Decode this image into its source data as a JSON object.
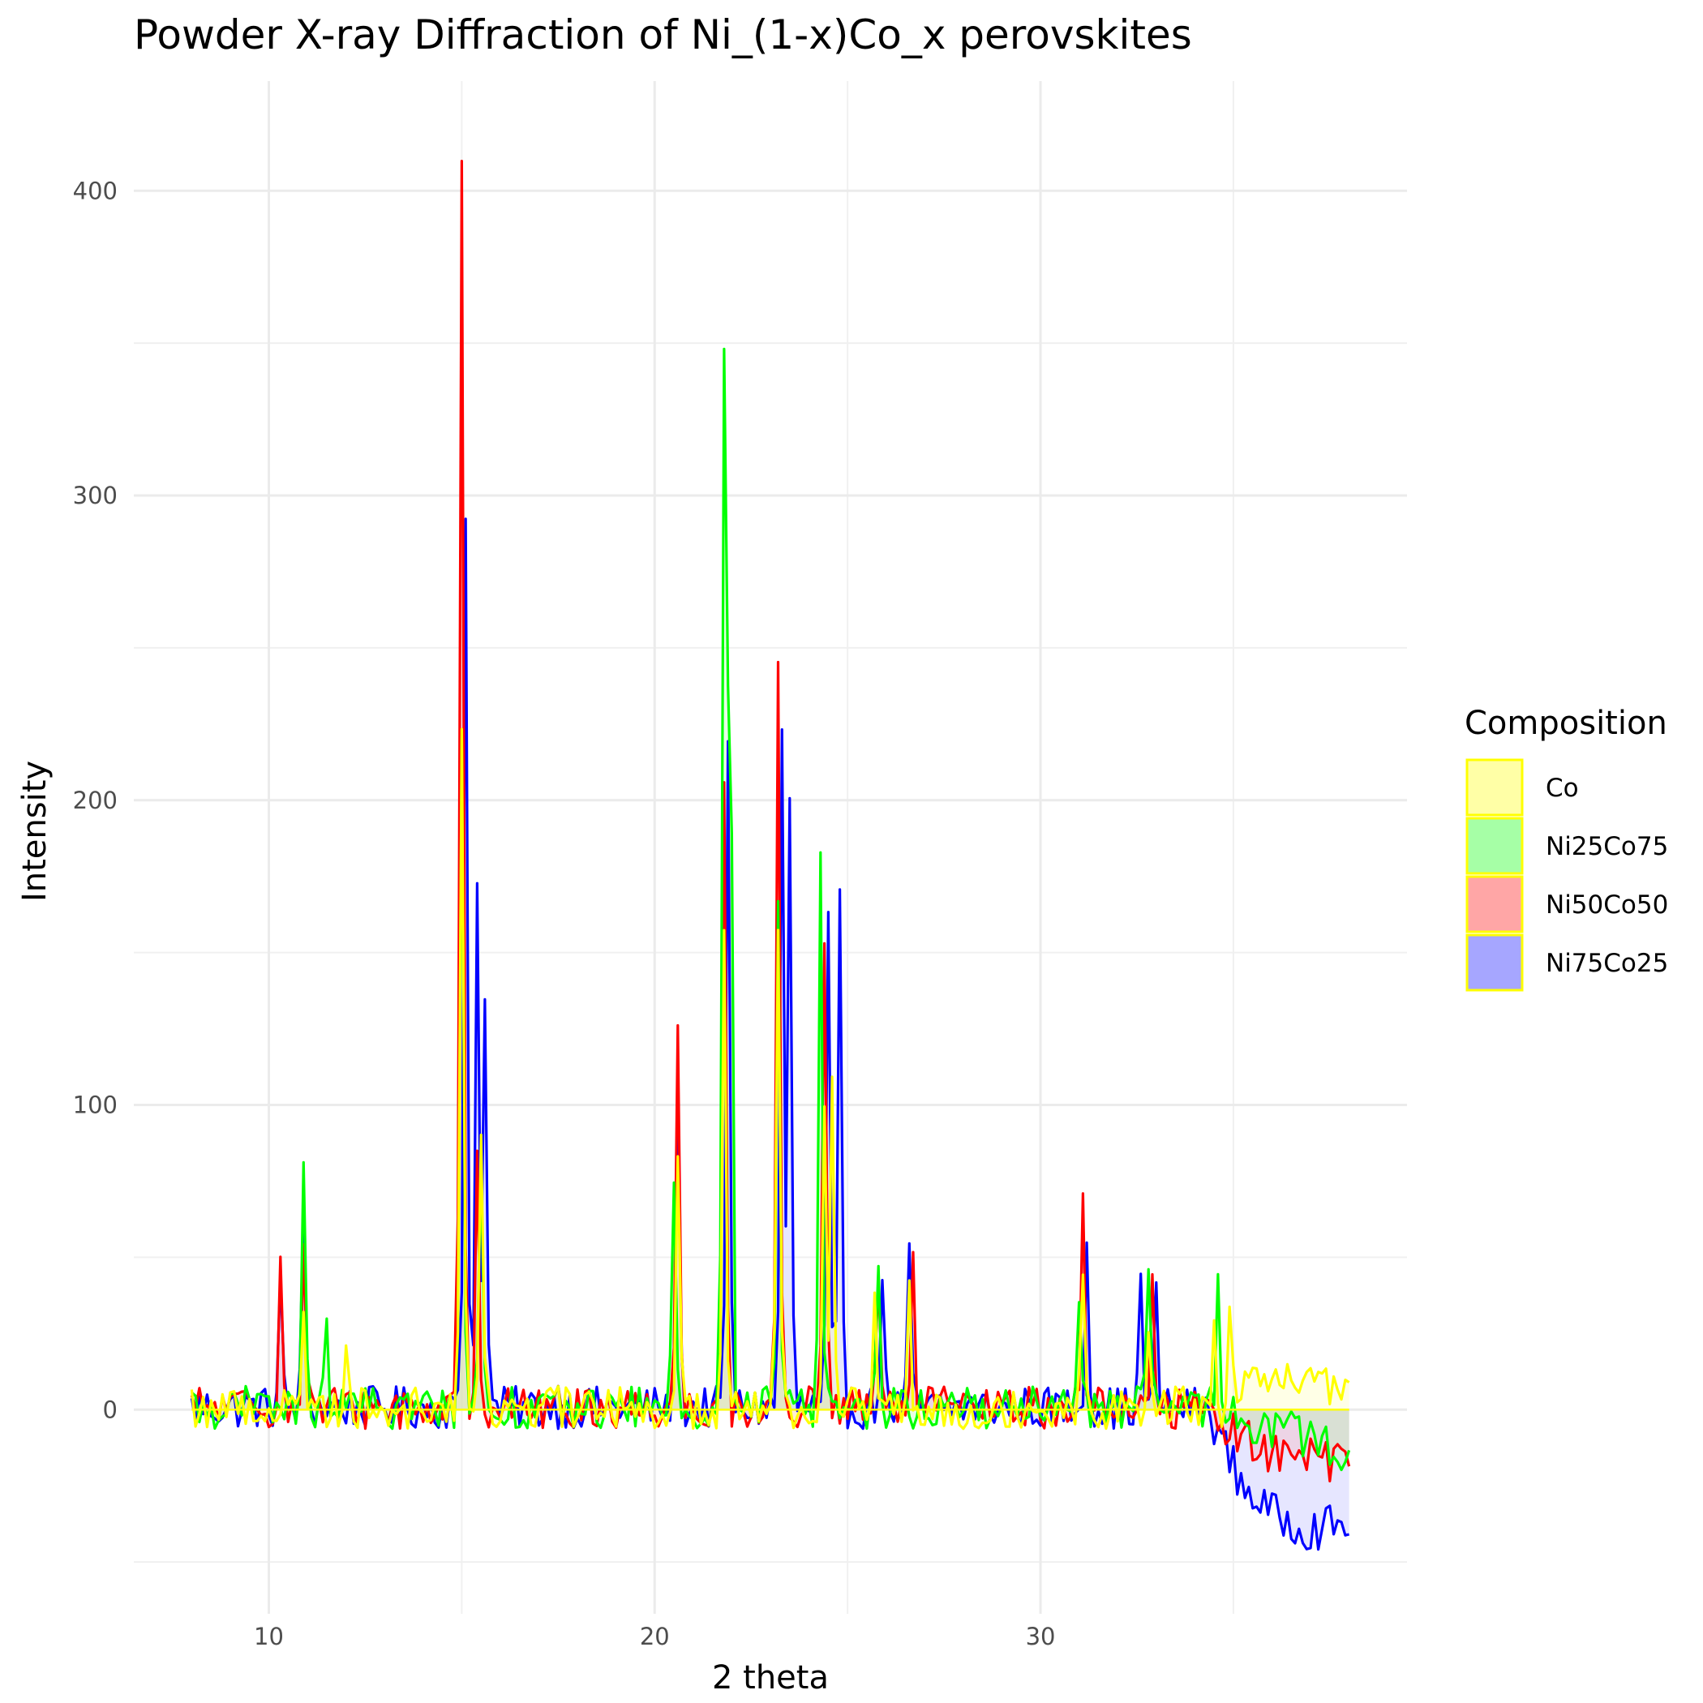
{
  "chart_data": {
    "type": "area",
    "title": "Powder X-ray Diffraction of Ni_(1-x)Co_x perovskites",
    "xlabel": "2 theta",
    "ylabel": "Intensity",
    "xlim": [
      6.5,
      39.5
    ],
    "ylim": [
      -67,
      436
    ],
    "x_ticks": [
      10,
      20,
      30
    ],
    "y_ticks": [
      0,
      100,
      200,
      300,
      400
    ],
    "grid": true,
    "legend_title": "Composition",
    "legend_position": "right",
    "step": 0.1,
    "x_start": 8.0,
    "x_end": 38.0,
    "series": [
      {
        "name": "Ni75Co25",
        "color": "#0000ff",
        "fill": "#a6a6ff",
        "peaks": [
          [
            10.3,
            40
          ],
          [
            10.9,
            60
          ],
          [
            15.1,
            292
          ],
          [
            15.4,
            170
          ],
          [
            15.6,
            140
          ],
          [
            20.6,
            95
          ],
          [
            21.9,
            222
          ],
          [
            23.3,
            224
          ],
          [
            23.5,
            198
          ],
          [
            24.5,
            158
          ],
          [
            24.8,
            163
          ],
          [
            25.9,
            48
          ],
          [
            26.6,
            48
          ],
          [
            31.2,
            55
          ],
          [
            32.6,
            42
          ],
          [
            33.0,
            35
          ]
        ],
        "tail": [
          [
            34.5,
            -5
          ],
          [
            35.2,
            -25
          ],
          [
            36.0,
            -35
          ],
          [
            37.0,
            -40
          ],
          [
            38.0,
            -38
          ]
        ]
      },
      {
        "name": "Ni50Co50",
        "color": "#ff0000",
        "fill": "#ffa6a6",
        "peaks": [
          [
            10.3,
            48
          ],
          [
            10.9,
            55
          ],
          [
            15.0,
            410
          ],
          [
            15.4,
            88
          ],
          [
            20.6,
            127
          ],
          [
            21.8,
            203
          ],
          [
            23.2,
            241
          ],
          [
            24.4,
            153
          ],
          [
            25.8,
            43
          ],
          [
            26.7,
            45
          ],
          [
            31.1,
            65
          ],
          [
            32.9,
            46
          ]
        ],
        "tail": [
          [
            34.5,
            -2
          ],
          [
            35.2,
            -10
          ],
          [
            36.0,
            -15
          ],
          [
            37.0,
            -17
          ],
          [
            38.0,
            -18
          ]
        ]
      },
      {
        "name": "Ni25Co75",
        "color": "#00ff00",
        "fill": "#a6ffa6",
        "peaks": [
          [
            10.9,
            75
          ],
          [
            11.5,
            25
          ],
          [
            15.0,
            220
          ],
          [
            15.5,
            85
          ],
          [
            20.5,
            75
          ],
          [
            21.8,
            343
          ],
          [
            21.95,
            315
          ],
          [
            23.2,
            160
          ],
          [
            24.3,
            185
          ],
          [
            25.8,
            48
          ],
          [
            31.0,
            40
          ],
          [
            32.8,
            40
          ],
          [
            34.6,
            40
          ]
        ],
        "tail": [
          [
            34.8,
            0
          ],
          [
            35.5,
            -5
          ],
          [
            36.5,
            -8
          ],
          [
            38.0,
            -15
          ]
        ]
      },
      {
        "name": "Co",
        "color": "#ffff00",
        "fill": "#ffffa6",
        "peaks": [
          [
            10.9,
            33
          ],
          [
            12.0,
            25
          ],
          [
            15.0,
            222
          ],
          [
            15.5,
            83
          ],
          [
            20.6,
            76
          ],
          [
            21.8,
            157
          ],
          [
            23.2,
            162
          ],
          [
            24.4,
            98
          ],
          [
            24.6,
            115
          ],
          [
            25.7,
            35
          ],
          [
            26.6,
            35
          ],
          [
            31.1,
            42
          ],
          [
            32.8,
            25
          ],
          [
            34.5,
            25
          ],
          [
            34.9,
            35
          ]
        ],
        "tail": [
          [
            35.0,
            5
          ],
          [
            36.5,
            10
          ],
          [
            38.0,
            5
          ]
        ]
      }
    ]
  }
}
